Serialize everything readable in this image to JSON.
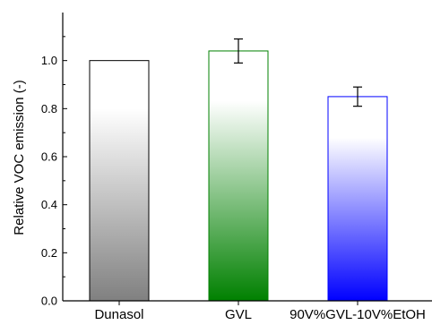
{
  "chart_data": {
    "type": "bar",
    "title": "",
    "xlabel": "",
    "ylabel": "Relative VOC emission (-)",
    "ylim": [
      0.0,
      1.2
    ],
    "yticks": [
      "0.0",
      "0.2",
      "0.4",
      "0.6",
      "0.8",
      "1.0"
    ],
    "categories": [
      "Dunasol",
      "GVL",
      "90V%GVL-10V%EtOH"
    ],
    "values": [
      1.0,
      1.04,
      0.85
    ],
    "errors": [
      0.0,
      0.05,
      0.04
    ],
    "bar_colors": [
      "#808080",
      "#008000",
      "#0000ff"
    ],
    "grid": false,
    "legend": "none"
  }
}
